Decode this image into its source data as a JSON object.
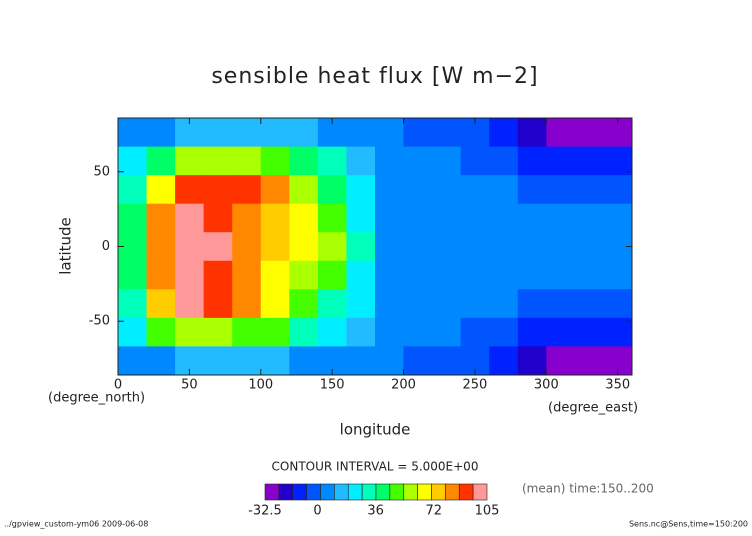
{
  "chart_data": {
    "type": "contour",
    "title": "sensible heat flux [W m−2]",
    "xlabel": "longitude",
    "ylabel": "latitude",
    "xunits": "(degree_east)",
    "yunits": "(degree_north)",
    "contour_interval": "CONTOUR INTERVAL = 5.000E+00",
    "time_note": "(mean) time:150..200",
    "footer_left": "../gpview_custom-ym06  2009-06-08",
    "footer_right": "Sens.nc@Sens,time=150:200",
    "xlim": [
      0,
      360
    ],
    "ylim": [
      -86,
      86
    ],
    "xticks": [
      0,
      50,
      100,
      150,
      200,
      250,
      300,
      350
    ],
    "yticks": [
      -50,
      0,
      50
    ],
    "x": [
      10,
      30,
      50,
      70,
      90,
      110,
      130,
      150,
      170,
      190,
      210,
      230,
      250,
      270,
      290,
      310,
      330,
      350
    ],
    "y": [
      76.4,
      57.3,
      38.2,
      19.1,
      0,
      -19.1,
      -38.2,
      -57.3,
      -76.4
    ],
    "z": [
      [
        5,
        10,
        15,
        15,
        15,
        15,
        12,
        10,
        5,
        2,
        0,
        0,
        -5,
        -10,
        -20,
        -25,
        -30,
        -30
      ],
      [
        20,
        40,
        55,
        60,
        55,
        50,
        40,
        30,
        15,
        3,
        2,
        2,
        0,
        -5,
        -10,
        -10,
        -10,
        -10
      ],
      [
        35,
        70,
        90,
        95,
        90,
        80,
        60,
        40,
        20,
        5,
        5,
        5,
        5,
        3,
        0,
        0,
        0,
        0
      ],
      [
        40,
        80,
        100,
        95,
        85,
        75,
        65,
        45,
        25,
        5,
        8,
        8,
        8,
        8,
        5,
        5,
        5,
        5
      ],
      [
        40,
        85,
        105,
        100,
        80,
        75,
        70,
        55,
        30,
        5,
        10,
        10,
        10,
        10,
        10,
        10,
        10,
        10
      ],
      [
        40,
        80,
        100,
        95,
        80,
        70,
        60,
        45,
        25,
        5,
        10,
        10,
        10,
        10,
        8,
        8,
        8,
        8
      ],
      [
        35,
        75,
        100,
        90,
        80,
        65,
        50,
        35,
        20,
        5,
        5,
        5,
        5,
        3,
        0,
        0,
        0,
        0
      ],
      [
        20,
        45,
        55,
        55,
        50,
        45,
        35,
        25,
        12,
        3,
        2,
        2,
        0,
        -5,
        -10,
        -10,
        -10,
        -10
      ],
      [
        5,
        10,
        12,
        12,
        12,
        12,
        10,
        8,
        5,
        2,
        0,
        0,
        -5,
        -10,
        -20,
        -25,
        -30,
        -30
      ]
    ],
    "clim": [
      -32.5,
      105
    ],
    "cticks": [
      -32.5,
      0,
      36,
      72,
      105
    ],
    "colormap": [
      "#8800cc",
      "#2200cc",
      "#0022ff",
      "#0055ff",
      "#0088ff",
      "#22bbff",
      "#00eeff",
      "#00ffbb",
      "#00ff66",
      "#44ff00",
      "#aaff00",
      "#ffff00",
      "#ffcc00",
      "#ff8800",
      "#ff3300",
      "#ff9999"
    ]
  }
}
